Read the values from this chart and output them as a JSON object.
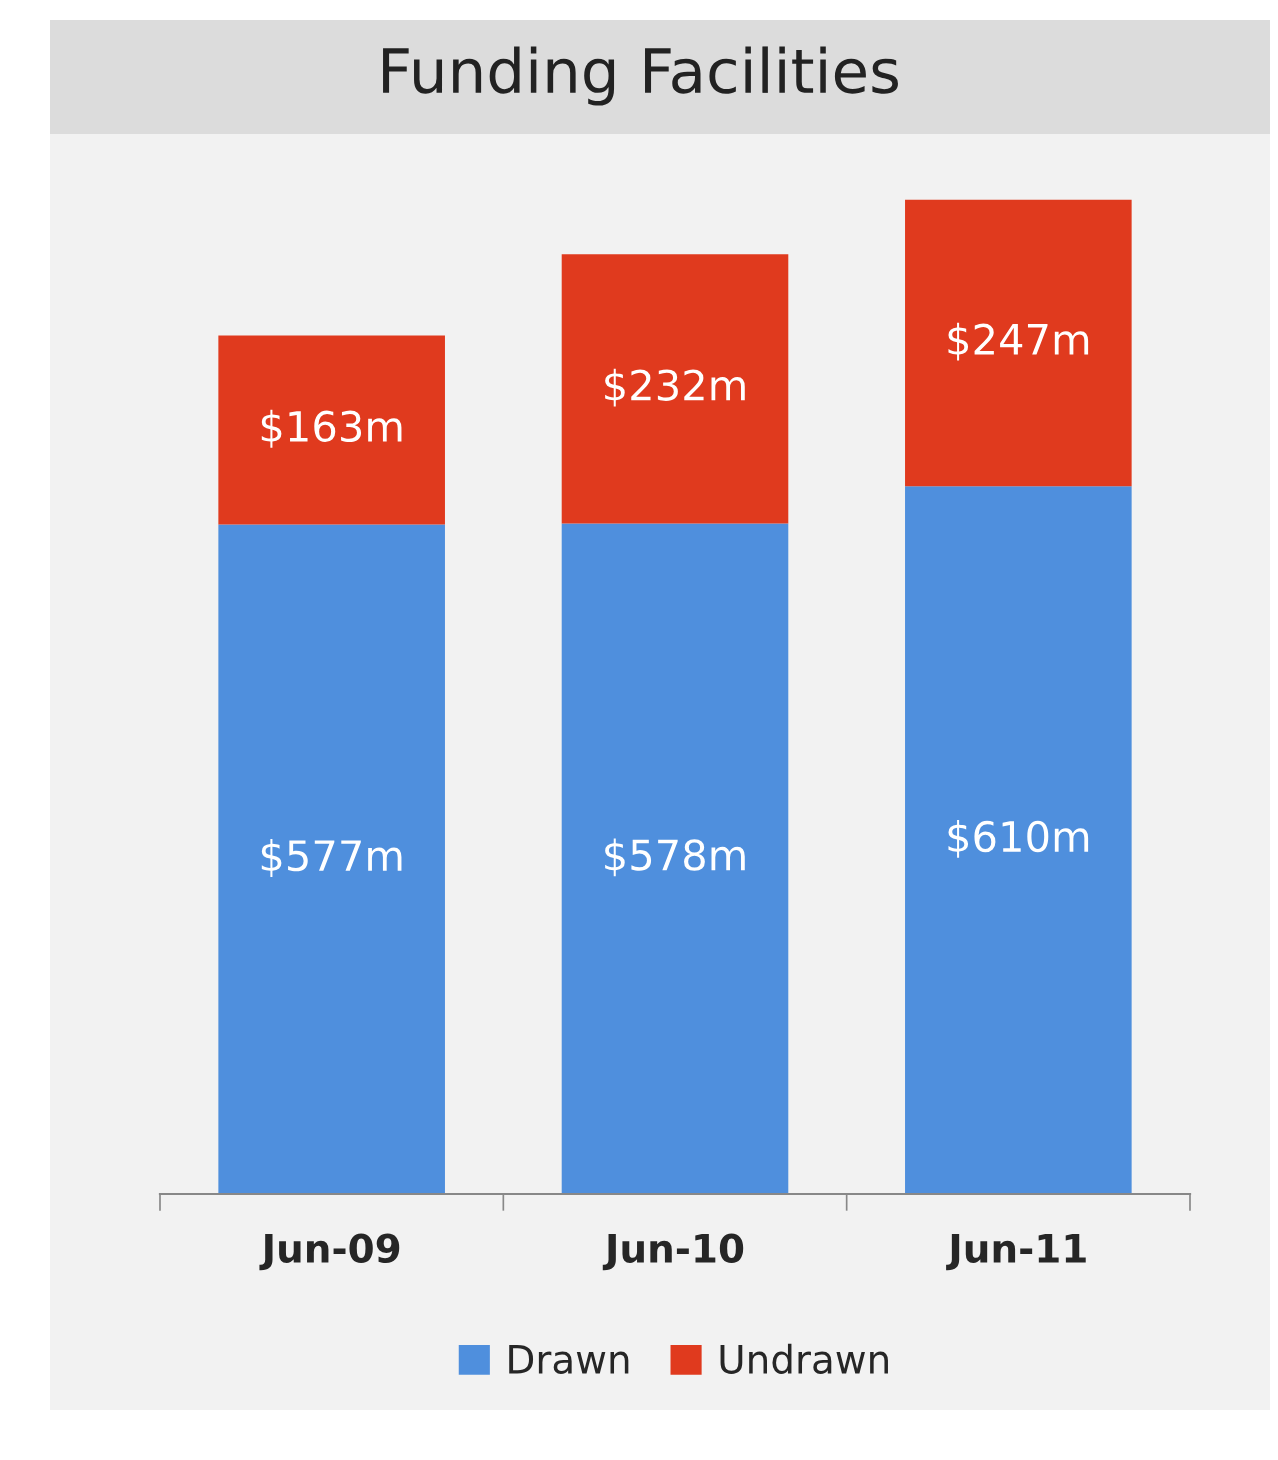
{
  "chart_data": {
    "type": "bar",
    "title": "Funding Facilities",
    "categories": [
      "Jun-09",
      "Jun-10",
      "Jun-11"
    ],
    "stacked": true,
    "legend": "bottom",
    "grid": false,
    "series": [
      {
        "name": "Drawn",
        "color": "#4f8fdd",
        "values": [
          577,
          578,
          610
        ],
        "value_labels": [
          "$577m",
          "$578m",
          "$610m"
        ]
      },
      {
        "name": "Undrawn",
        "color": "#e03a1e",
        "values": [
          163,
          232,
          247
        ],
        "value_labels": [
          "$163m",
          "$232m",
          "$247m"
        ]
      }
    ]
  }
}
